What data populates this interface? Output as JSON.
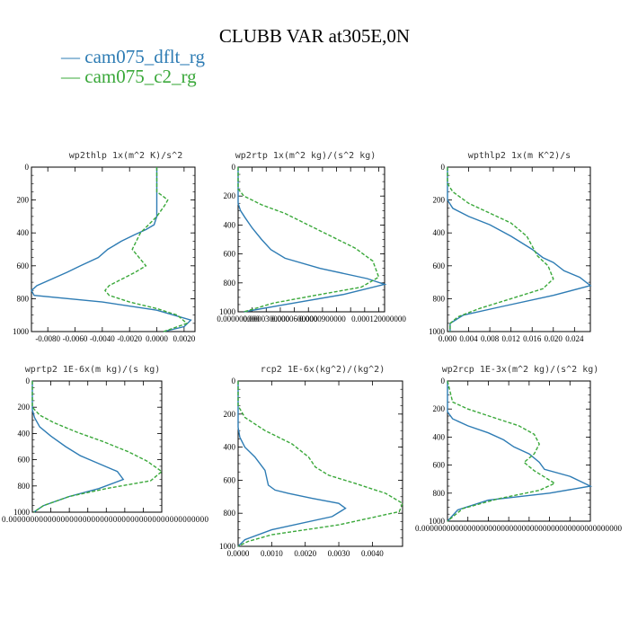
{
  "title": "CLUBB VAR at305E,0N",
  "legend": [
    {
      "label": "— cam075_dflt_rg",
      "color": "#2e7cb4"
    },
    {
      "label": "— cam075_c2_rg",
      "color": "#3aa83a"
    }
  ],
  "chart_data": [
    {
      "type": "line",
      "title": "wp2thlp  1x(m^2 K)/s^2",
      "xlim": [
        -0.0092,
        0.0028
      ],
      "ylim": [
        1000,
        0
      ],
      "xticks": [
        -0.008,
        -0.006,
        -0.004,
        -0.002,
        0.0,
        0.002
      ],
      "xtick_labels": [
        "-0.0080",
        "-0.0060",
        "-0.0040",
        "-0.0020",
        "0.0000",
        "0.0020"
      ],
      "yticks": [
        0,
        200,
        400,
        600,
        800,
        1000
      ],
      "series": [
        {
          "name": "cam075_dflt_rg",
          "x": [
            0,
            0,
            -0.0002,
            -0.0008,
            -0.0016,
            -0.0026,
            -0.0036,
            -0.0043,
            -0.0056,
            -0.0066,
            -0.0088,
            -0.0092,
            -0.009,
            -0.004,
            0,
            0.0025,
            0.002,
            0.0005
          ],
          "y": [
            0,
            300,
            350,
            380,
            410,
            450,
            500,
            550,
            600,
            640,
            720,
            750,
            780,
            820,
            870,
            930,
            970,
            1000
          ]
        },
        {
          "name": "cam075_c2_rg",
          "x": [
            0,
            0,
            0.0005,
            0.0008,
            0.0006,
            0,
            -0.0012,
            -0.0018,
            -0.0008,
            -0.0016,
            -0.0035,
            -0.0038,
            -0.0035,
            -0.002,
            0,
            0.0015,
            0.0022,
            0.0005
          ],
          "y": [
            0,
            150,
            180,
            200,
            230,
            300,
            400,
            500,
            600,
            640,
            720,
            750,
            780,
            820,
            860,
            900,
            950,
            1000
          ]
        }
      ]
    },
    {
      "type": "line",
      "title": "wp2rtp  1x(m^2 kg)/(s^2 kg)",
      "xlim": [
        0,
        0.000125
      ],
      "ylim": [
        1000,
        0
      ],
      "xticks": [
        0,
        1.2e-05,
        2.4e-05,
        3.6e-05,
        4.8e-05,
        6e-05,
        7.2e-05,
        8.4e-05,
        9.6e-05,
        0.000108,
        0.00012
      ],
      "xtick_labels": [
        "0.000000000",
        "",
        "0.0000300000",
        "",
        "0.0000600000",
        "",
        "0.0000900000",
        "",
        "",
        "",
        "0.000120000000"
      ],
      "yticks": [
        0,
        200,
        400,
        600,
        800,
        1000
      ],
      "series": [
        {
          "name": "cam075_dflt_rg",
          "x": [
            0,
            0,
            2e-06,
            6e-06,
            1.2e-05,
            2e-05,
            2.8e-05,
            4e-05,
            7e-05,
            0.00011,
            0.000125,
            9e-05,
            4e-05,
            5e-06
          ],
          "y": [
            0,
            250,
            300,
            350,
            420,
            500,
            570,
            630,
            700,
            770,
            810,
            880,
            950,
            1000
          ]
        },
        {
          "name": "cam075_c2_rg",
          "x": [
            0,
            0,
            5e-06,
            2e-05,
            4e-05,
            6e-05,
            8e-05,
            0.0001,
            0.000115,
            0.00012,
            0.000105,
            7e-05,
            3e-05,
            5e-06
          ],
          "y": [
            0,
            150,
            200,
            260,
            320,
            400,
            480,
            560,
            650,
            760,
            830,
            880,
            940,
            1000
          ]
        }
      ]
    },
    {
      "type": "line",
      "title": "wpthlp2  1x(m K^2)/s",
      "xlim": [
        0,
        0.027
      ],
      "ylim": [
        1000,
        0
      ],
      "xticks": [
        0,
        0.004,
        0.008,
        0.012,
        0.016,
        0.02,
        0.024
      ],
      "xtick_labels": [
        "0.000",
        "0.004",
        "0.008",
        "0.012",
        "0.016",
        "0.020",
        "0.024"
      ],
      "yticks": [
        0,
        200,
        400,
        600,
        800,
        1000
      ],
      "series": [
        {
          "name": "cam075_dflt_rg",
          "x": [
            0,
            0,
            0.001,
            0.004,
            0.008,
            0.012,
            0.016,
            0.018,
            0.02,
            0.022,
            0.025,
            0.027,
            0.02,
            0.01,
            0.003,
            0.0005,
            0.0005
          ],
          "y": [
            0,
            200,
            250,
            300,
            350,
            420,
            500,
            550,
            580,
            630,
            670,
            720,
            780,
            850,
            900,
            950,
            1000
          ]
        },
        {
          "name": "cam075_c2_rg",
          "x": [
            0,
            0,
            0.001,
            0.004,
            0.008,
            0.012,
            0.015,
            0.016,
            0.017,
            0.019,
            0.02,
            0.018,
            0.012,
            0.006,
            0.002,
            0.0005,
            0.0005
          ],
          "y": [
            0,
            100,
            150,
            220,
            280,
            340,
            420,
            480,
            540,
            600,
            680,
            740,
            800,
            860,
            910,
            950,
            1000
          ]
        }
      ]
    },
    {
      "type": "line",
      "title": "wprtp2  1E-6x(m kg)/(s kg)",
      "xlim": [
        0,
        1.75e-05
      ],
      "ylim": [
        1000,
        0
      ],
      "xticks": [
        0,
        2.5e-06,
        5e-06,
        7.5e-06,
        1e-05,
        1.25e-05,
        1.5e-05,
        1.75e-05
      ],
      "xtick_labels": [
        "0.0000000000000000000000000000000000000000000000",
        "",
        "",
        "",
        "",
        "",
        "",
        ""
      ],
      "yticks": [
        0,
        200,
        400,
        600,
        800,
        1000
      ],
      "series": [
        {
          "name": "cam075_dflt_rg",
          "x": [
            0,
            0,
            3e-07,
            1e-06,
            2.5e-06,
            4.5e-06,
            6.5e-06,
            9e-06,
            1.15e-05,
            1.23e-05,
            9e-06,
            5e-06,
            1.5e-06,
            2e-07
          ],
          "y": [
            0,
            220,
            280,
            350,
            420,
            500,
            570,
            630,
            690,
            750,
            820,
            880,
            950,
            1000
          ]
        },
        {
          "name": "cam075_c2_rg",
          "x": [
            0,
            0,
            1e-06,
            3e-06,
            6e-06,
            9.5e-06,
            1.3e-05,
            1.55e-05,
            1.75e-05,
            1.6e-05,
            1e-05,
            5e-06,
            1.5e-06,
            2e-07
          ],
          "y": [
            0,
            200,
            260,
            320,
            390,
            460,
            540,
            610,
            690,
            760,
            820,
            880,
            950,
            1000
          ]
        }
      ]
    },
    {
      "type": "line",
      "title": "rcp2  1E-6x(kg^2)/(kg^2)",
      "xlim": [
        0,
        0.0049
      ],
      "ylim": [
        1000,
        0
      ],
      "xticks": [
        0,
        0.001,
        0.002,
        0.003,
        0.004
      ],
      "xtick_labels": [
        "0.0000",
        "0.0010",
        "0.0020",
        "0.0030",
        "0.0040"
      ],
      "yticks": [
        0,
        200,
        400,
        600,
        800,
        1000
      ],
      "series": [
        {
          "name": "cam075_dflt_rg",
          "x": [
            0,
            0,
            5e-05,
            0.0002,
            0.0005,
            0.0008,
            0.0009,
            0.0011,
            0.0015,
            0.0022,
            0.003,
            0.0032,
            0.0028,
            0.001,
            0.0002,
            0
          ],
          "y": [
            0,
            280,
            340,
            400,
            460,
            540,
            630,
            660,
            680,
            710,
            740,
            770,
            820,
            900,
            960,
            1000
          ]
        },
        {
          "name": "cam075_c2_rg",
          "x": [
            0,
            0,
            0.0002,
            0.0008,
            0.0016,
            0.0021,
            0.0023,
            0.0027,
            0.0035,
            0.0044,
            0.0049,
            0.0048,
            0.003,
            0.001,
            0.0003,
            0
          ],
          "y": [
            0,
            150,
            220,
            300,
            380,
            460,
            520,
            570,
            620,
            680,
            740,
            790,
            870,
            930,
            970,
            1000
          ]
        }
      ]
    },
    {
      "type": "line",
      "title": "wp2rcp  1E-3x(m^2 kg)/(s^2 kg)",
      "xlim": [
        0,
        0.0028
      ],
      "ylim": [
        1000,
        0
      ],
      "xticks": [
        0,
        0.0004,
        0.0008,
        0.0012,
        0.0016,
        0.002,
        0.0024,
        0.0028
      ],
      "xtick_labels": [
        "0.000000000000000000000000000000000000000000000000",
        "",
        "",
        "",
        "",
        "",
        "",
        ""
      ],
      "yticks": [
        0,
        200,
        400,
        600,
        800,
        1000
      ],
      "series": [
        {
          "name": "cam075_dflt_rg",
          "x": [
            0,
            0,
            0.0001,
            0.0004,
            0.0008,
            0.0011,
            0.0013,
            0.0016,
            0.0018,
            0.0019,
            0.0024,
            0.0028,
            0.002,
            0.0008,
            0.0002,
            0
          ],
          "y": [
            0,
            220,
            270,
            320,
            370,
            420,
            470,
            520,
            580,
            630,
            680,
            750,
            800,
            850,
            920,
            1000
          ]
        },
        {
          "name": "cam075_c2_rg",
          "x": [
            0,
            0.0001,
            0.0004,
            0.0009,
            0.0014,
            0.0017,
            0.0018,
            0.0017,
            0.0015,
            0.0017,
            0.0021,
            0.0018,
            0.001,
            0.0003,
            0
          ],
          "y": [
            0,
            150,
            200,
            260,
            320,
            380,
            450,
            520,
            580,
            640,
            730,
            780,
            840,
            910,
            1000
          ]
        }
      ]
    }
  ]
}
